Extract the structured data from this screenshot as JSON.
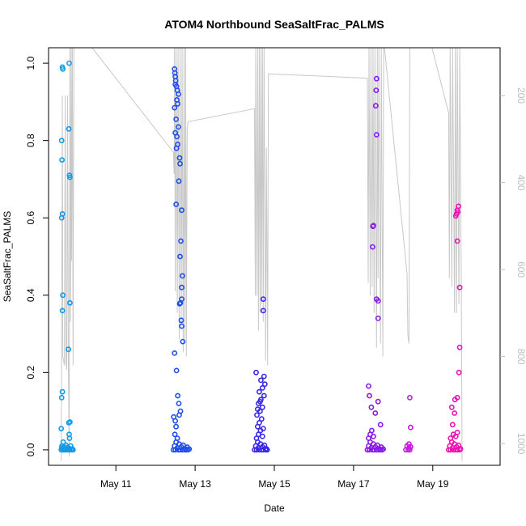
{
  "chart_data": {
    "type": "scatter",
    "title": "ATOM4 Northbound SeaSaltFrac_PALMS",
    "xlabel": "Date",
    "ylabel": "SeaSaltFrac_PALMS",
    "x_unit": "days in May",
    "xlim": [
      9.3,
      20.7
    ],
    "ylim": [
      -0.04,
      1.04
    ],
    "x_ticks": [
      {
        "value": 11,
        "label": "May 11"
      },
      {
        "value": 13,
        "label": "May 13"
      },
      {
        "value": 15,
        "label": "May 15"
      },
      {
        "value": 17,
        "label": "May 17"
      },
      {
        "value": 19,
        "label": "May 19"
      }
    ],
    "y_ticks": [
      {
        "value": 0.0,
        "label": "0.0"
      },
      {
        "value": 0.2,
        "label": "0.2"
      },
      {
        "value": 0.4,
        "label": "0.4"
      },
      {
        "value": 0.6,
        "label": "0.6"
      },
      {
        "value": 0.8,
        "label": "0.8"
      },
      {
        "value": 1.0,
        "label": "1.0"
      }
    ],
    "right_axis": {
      "reversed": true,
      "lim": [
        90,
        1050
      ],
      "ticks": [
        {
          "value": 200,
          "label": "200"
        },
        {
          "value": 400,
          "label": "400"
        },
        {
          "value": 600,
          "label": "600"
        },
        {
          "value": 800,
          "label": "800"
        },
        {
          "value": 1000,
          "label": "1000"
        }
      ]
    },
    "grid": false,
    "colors": {
      "altitude_line": "#c8c8c8",
      "axis": "#000000",
      "right_axis": "#bdbdbd"
    },
    "altitude_trace": [
      [
        9.62,
        1040
      ],
      [
        9.65,
        200
      ],
      [
        9.66,
        800
      ],
      [
        9.7,
        820
      ],
      [
        9.72,
        200
      ],
      [
        9.74,
        810
      ],
      [
        9.76,
        830
      ],
      [
        9.78,
        200
      ],
      [
        9.8,
        820
      ],
      [
        9.82,
        1030
      ],
      [
        9.84,
        90
      ],
      [
        9.85,
        720
      ],
      [
        9.86,
        540
      ],
      [
        9.87,
        90
      ],
      [
        9.88,
        580
      ],
      [
        9.9,
        90
      ],
      [
        9.92,
        820
      ],
      [
        9.94,
        85
      ],
      [
        10.4,
        90
      ],
      [
        12.45,
        330
      ],
      [
        12.47,
        380
      ],
      [
        12.48,
        90
      ],
      [
        12.5,
        650
      ],
      [
        12.52,
        90
      ],
      [
        12.55,
        700
      ],
      [
        12.57,
        90
      ],
      [
        12.6,
        760
      ],
      [
        12.62,
        90
      ],
      [
        12.65,
        730
      ],
      [
        12.67,
        90
      ],
      [
        12.7,
        790
      ],
      [
        12.72,
        90
      ],
      [
        12.74,
        760
      ],
      [
        12.76,
        90
      ],
      [
        12.78,
        800
      ],
      [
        12.8,
        280
      ],
      [
        12.82,
        260
      ],
      [
        14.5,
        230
      ],
      [
        14.52,
        660
      ],
      [
        14.53,
        90
      ],
      [
        14.56,
        660
      ],
      [
        14.58,
        90
      ],
      [
        14.6,
        740
      ],
      [
        14.62,
        90
      ],
      [
        14.64,
        700
      ],
      [
        14.66,
        90
      ],
      [
        14.68,
        680
      ],
      [
        14.7,
        90
      ],
      [
        14.72,
        720
      ],
      [
        14.74,
        90
      ],
      [
        14.78,
        810
      ],
      [
        14.8,
        320
      ],
      [
        14.83,
        820
      ],
      [
        14.85,
        150
      ],
      [
        17.35,
        160
      ],
      [
        17.37,
        630
      ],
      [
        17.39,
        90
      ],
      [
        17.42,
        660
      ],
      [
        17.44,
        90
      ],
      [
        17.47,
        640
      ],
      [
        17.49,
        90
      ],
      [
        17.52,
        700
      ],
      [
        17.54,
        90
      ],
      [
        17.58,
        780
      ],
      [
        17.6,
        90
      ],
      [
        17.62,
        620
      ],
      [
        17.64,
        90
      ],
      [
        17.68,
        770
      ],
      [
        17.7,
        90
      ],
      [
        17.74,
        800
      ],
      [
        17.76,
        90
      ],
      [
        17.78,
        85
      ],
      [
        18.35,
        610
      ],
      [
        18.37,
        750
      ],
      [
        18.4,
        770
      ],
      [
        18.42,
        85
      ],
      [
        18.98,
        85
      ],
      [
        19.4,
        240
      ],
      [
        19.42,
        620
      ],
      [
        19.44,
        90
      ],
      [
        19.48,
        640
      ],
      [
        19.5,
        90
      ],
      [
        19.55,
        700
      ],
      [
        19.57,
        90
      ],
      [
        19.6,
        700
      ],
      [
        19.62,
        90
      ],
      [
        19.66,
        680
      ],
      [
        19.68,
        90
      ],
      [
        19.72,
        620
      ],
      [
        19.74,
        1040
      ]
    ],
    "series": [
      {
        "name": "",
        "color": "#139be8",
        "points": [
          [
            9.62,
            0.0
          ],
          [
            9.63,
            0.005
          ],
          [
            9.64,
            0.01
          ],
          [
            9.66,
            0.0
          ],
          [
            9.67,
            0.02
          ],
          [
            9.68,
            0.0
          ],
          [
            9.69,
            0.008
          ],
          [
            9.7,
            0.003
          ],
          [
            9.72,
            0.0
          ],
          [
            9.74,
            0.012
          ],
          [
            9.76,
            0.0
          ],
          [
            9.78,
            0.006
          ],
          [
            9.8,
            0.0
          ],
          [
            9.82,
            0.004
          ],
          [
            9.84,
            0.0
          ],
          [
            9.86,
            0.01
          ],
          [
            9.88,
            0.0
          ],
          [
            9.9,
            0.002
          ],
          [
            9.92,
            0.0
          ],
          [
            9.63,
            0.8
          ],
          [
            9.65,
            0.99
          ],
          [
            9.66,
            0.985
          ],
          [
            9.64,
            0.75
          ],
          [
            9.65,
            0.61
          ],
          [
            9.63,
            0.6
          ],
          [
            9.66,
            0.4
          ],
          [
            9.65,
            0.36
          ],
          [
            9.63,
            0.135
          ],
          [
            9.65,
            0.15
          ],
          [
            9.62,
            0.055
          ],
          [
            9.82,
            1.0
          ],
          [
            9.81,
            0.83
          ],
          [
            9.83,
            0.71
          ],
          [
            9.84,
            0.705
          ],
          [
            9.84,
            0.38
          ],
          [
            9.8,
            0.26
          ],
          [
            9.81,
            0.07
          ],
          [
            9.84,
            0.072
          ],
          [
            9.82,
            0.04
          ],
          [
            9.83,
            0.03
          ]
        ]
      },
      {
        "name": "",
        "color": "#1f4fe8",
        "points": [
          [
            12.45,
            0.0
          ],
          [
            12.48,
            0.01
          ],
          [
            12.5,
            0.0
          ],
          [
            12.52,
            0.02
          ],
          [
            12.55,
            0.005
          ],
          [
            12.58,
            0.0
          ],
          [
            12.6,
            0.015
          ],
          [
            12.62,
            0.0
          ],
          [
            12.65,
            0.008
          ],
          [
            12.68,
            0.0
          ],
          [
            12.7,
            0.012
          ],
          [
            12.72,
            0.0
          ],
          [
            12.75,
            0.003
          ],
          [
            12.78,
            0.0
          ],
          [
            12.8,
            0.007
          ],
          [
            12.82,
            0.0
          ],
          [
            12.85,
            0.002
          ],
          [
            12.48,
            0.985
          ],
          [
            12.49,
            0.975
          ],
          [
            12.5,
            0.965
          ],
          [
            12.51,
            0.955
          ],
          [
            12.5,
            0.945
          ],
          [
            12.53,
            0.94
          ],
          [
            12.55,
            0.93
          ],
          [
            12.58,
            0.92
          ],
          [
            12.54,
            0.905
          ],
          [
            12.56,
            0.895
          ],
          [
            12.48,
            0.885
          ],
          [
            12.52,
            0.855
          ],
          [
            12.58,
            0.835
          ],
          [
            12.5,
            0.82
          ],
          [
            12.54,
            0.81
          ],
          [
            12.56,
            0.79
          ],
          [
            12.53,
            0.78
          ],
          [
            12.61,
            0.755
          ],
          [
            12.62,
            0.74
          ],
          [
            12.59,
            0.695
          ],
          [
            12.52,
            0.635
          ],
          [
            12.66,
            0.62
          ],
          [
            12.64,
            0.54
          ],
          [
            12.62,
            0.5
          ],
          [
            12.68,
            0.45
          ],
          [
            12.66,
            0.42
          ],
          [
            12.66,
            0.39
          ],
          [
            12.63,
            0.38
          ],
          [
            12.61,
            0.378
          ],
          [
            12.65,
            0.335
          ],
          [
            12.66,
            0.32
          ],
          [
            12.69,
            0.28
          ],
          [
            12.48,
            0.25
          ],
          [
            12.53,
            0.205
          ],
          [
            12.56,
            0.14
          ],
          [
            12.59,
            0.12
          ],
          [
            12.63,
            0.1
          ],
          [
            12.46,
            0.085
          ],
          [
            12.5,
            0.075
          ],
          [
            12.6,
            0.09
          ],
          [
            12.52,
            0.06
          ],
          [
            12.49,
            0.04
          ],
          [
            12.55,
            0.03
          ]
        ]
      },
      {
        "name": "",
        "color": "#3a28e8",
        "points": [
          [
            14.5,
            0.0
          ],
          [
            14.53,
            0.01
          ],
          [
            14.55,
            0.0
          ],
          [
            14.58,
            0.02
          ],
          [
            14.6,
            0.005
          ],
          [
            14.62,
            0.0
          ],
          [
            14.65,
            0.015
          ],
          [
            14.68,
            0.0
          ],
          [
            14.7,
            0.008
          ],
          [
            14.72,
            0.0
          ],
          [
            14.75,
            0.012
          ],
          [
            14.78,
            0.0
          ],
          [
            14.8,
            0.003
          ],
          [
            14.82,
            0.0
          ],
          [
            14.55,
            0.03
          ],
          [
            14.6,
            0.04
          ],
          [
            14.65,
            0.05
          ],
          [
            14.7,
            0.035
          ],
          [
            14.58,
            0.06
          ],
          [
            14.62,
            0.07
          ],
          [
            14.68,
            0.08
          ],
          [
            14.72,
            0.055
          ],
          [
            14.56,
            0.09
          ],
          [
            14.64,
            0.1
          ],
          [
            14.7,
            0.11
          ],
          [
            14.6,
            0.12
          ],
          [
            14.66,
            0.13
          ],
          [
            14.74,
            0.14
          ],
          [
            14.62,
            0.15
          ],
          [
            14.7,
            0.16
          ],
          [
            14.76,
            0.17
          ],
          [
            14.66,
            0.18
          ],
          [
            14.74,
            0.19
          ],
          [
            14.54,
            0.2
          ],
          [
            14.64,
            0.125
          ],
          [
            14.58,
            0.105
          ],
          [
            14.72,
            0.39
          ],
          [
            14.72,
            0.36
          ]
        ]
      },
      {
        "name": "",
        "color": "#8a1ae8",
        "points": [
          [
            17.35,
            0.0
          ],
          [
            17.38,
            0.01
          ],
          [
            17.4,
            0.0
          ],
          [
            17.42,
            0.02
          ],
          [
            17.45,
            0.005
          ],
          [
            17.48,
            0.0
          ],
          [
            17.5,
            0.015
          ],
          [
            17.52,
            0.0
          ],
          [
            17.55,
            0.008
          ],
          [
            17.58,
            0.0
          ],
          [
            17.6,
            0.012
          ],
          [
            17.62,
            0.0
          ],
          [
            17.65,
            0.003
          ],
          [
            17.68,
            0.0
          ],
          [
            17.7,
            0.007
          ],
          [
            17.72,
            0.0
          ],
          [
            17.75,
            0.002
          ],
          [
            17.38,
            0.03
          ],
          [
            17.42,
            0.04
          ],
          [
            17.46,
            0.05
          ],
          [
            17.5,
            0.035
          ],
          [
            17.4,
            0.14
          ],
          [
            17.38,
            0.165
          ],
          [
            17.45,
            0.11
          ],
          [
            17.62,
            0.125
          ],
          [
            17.55,
            0.095
          ],
          [
            17.68,
            0.065
          ],
          [
            17.58,
            0.96
          ],
          [
            17.57,
            0.93
          ],
          [
            17.56,
            0.89
          ],
          [
            17.58,
            0.815
          ],
          [
            17.5,
            0.58
          ],
          [
            17.49,
            0.578
          ],
          [
            17.48,
            0.525
          ],
          [
            17.58,
            0.39
          ],
          [
            17.62,
            0.385
          ],
          [
            17.62,
            0.34
          ]
        ]
      },
      {
        "name": "",
        "color": "#c618e0",
        "points": [
          [
            18.32,
            0.0
          ],
          [
            18.35,
            0.01
          ],
          [
            18.38,
            0.0
          ],
          [
            18.4,
            0.005
          ],
          [
            18.42,
            0.0
          ],
          [
            18.44,
            0.008
          ],
          [
            18.42,
            0.135
          ],
          [
            18.44,
            0.058
          ],
          [
            18.4,
            0.015
          ]
        ]
      },
      {
        "name": "",
        "color": "#ee10b4",
        "points": [
          [
            19.4,
            0.0
          ],
          [
            19.43,
            0.01
          ],
          [
            19.45,
            0.0
          ],
          [
            19.48,
            0.02
          ],
          [
            19.5,
            0.005
          ],
          [
            19.53,
            0.0
          ],
          [
            19.55,
            0.015
          ],
          [
            19.58,
            0.0
          ],
          [
            19.6,
            0.008
          ],
          [
            19.62,
            0.0
          ],
          [
            19.65,
            0.012
          ],
          [
            19.68,
            0.0
          ],
          [
            19.7,
            0.003
          ],
          [
            19.45,
            0.03
          ],
          [
            19.52,
            0.04
          ],
          [
            19.58,
            0.035
          ],
          [
            19.62,
            0.045
          ],
          [
            19.5,
            0.065
          ],
          [
            19.56,
            0.13
          ],
          [
            19.62,
            0.135
          ],
          [
            19.55,
            0.095
          ],
          [
            19.48,
            0.11
          ],
          [
            19.66,
            0.2
          ],
          [
            19.68,
            0.265
          ],
          [
            19.65,
            0.63
          ],
          [
            19.62,
            0.62
          ],
          [
            19.63,
            0.615
          ],
          [
            19.6,
            0.61
          ],
          [
            19.58,
            0.605
          ],
          [
            19.62,
            0.54
          ],
          [
            19.68,
            0.42
          ]
        ]
      }
    ]
  }
}
